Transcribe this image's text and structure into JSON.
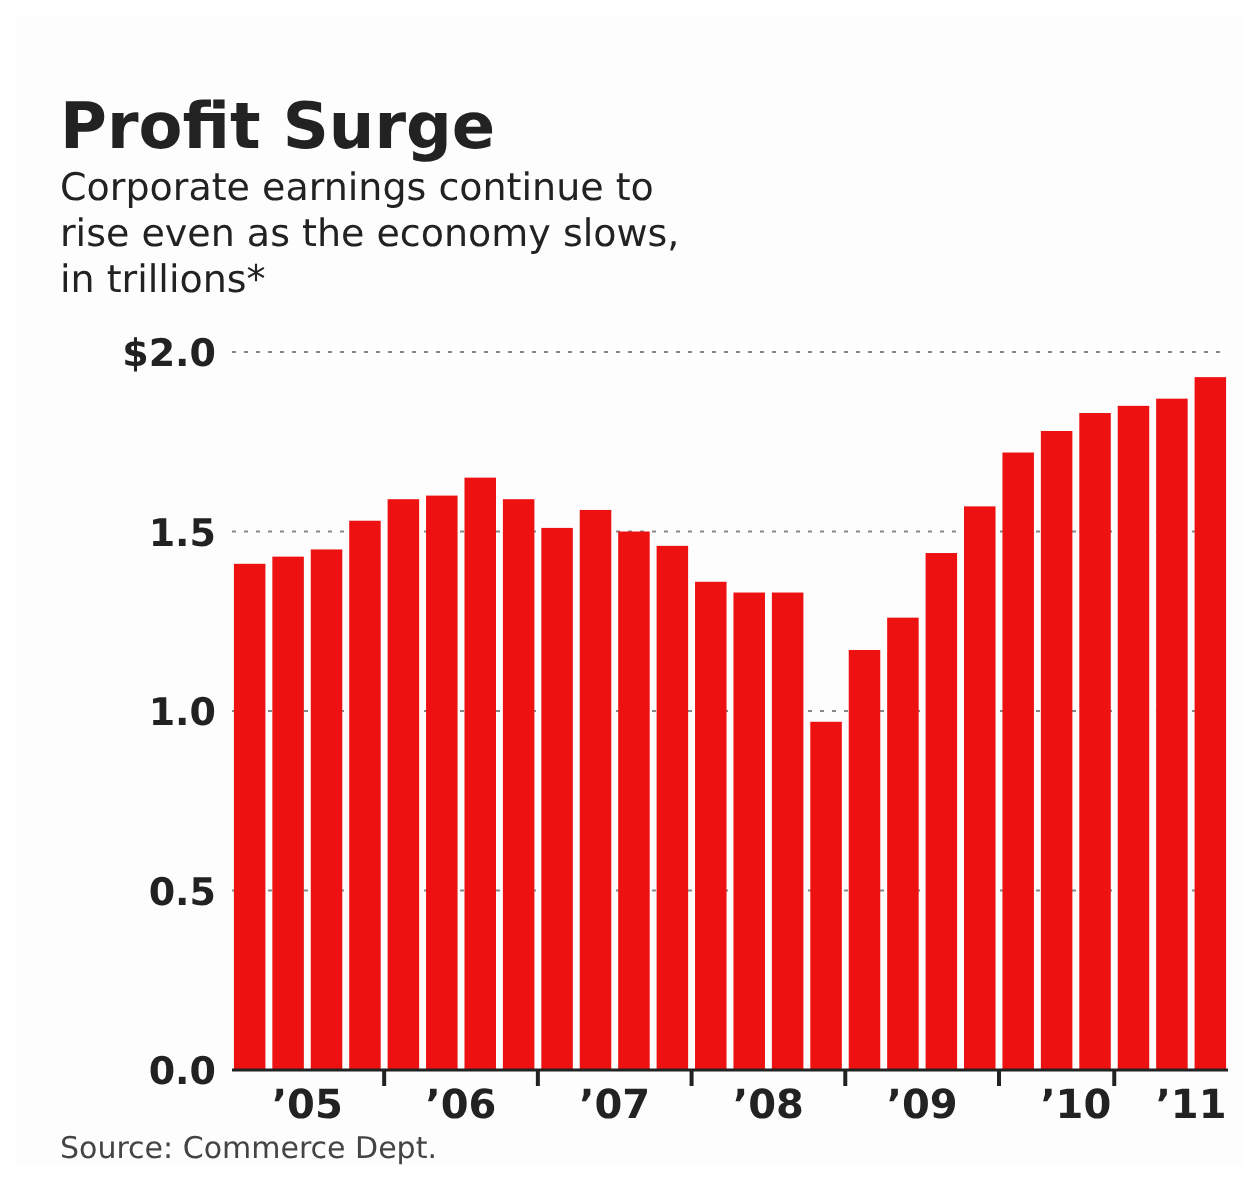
{
  "chart_data": {
    "type": "bar",
    "title": "Profit Surge",
    "subtitle": "Corporate earnings continue to rise even as the economy slows, in trillions*",
    "categories": [
      null,
      "’05",
      null,
      null,
      null,
      "’06",
      null,
      null,
      null,
      "’07",
      null,
      null,
      null,
      "’08",
      null,
      null,
      null,
      "’09",
      null,
      null,
      null,
      "’10",
      null,
      null,
      "’11",
      null
    ],
    "values": [
      1.41,
      1.43,
      1.45,
      1.53,
      1.59,
      1.6,
      1.65,
      1.59,
      1.51,
      1.56,
      1.5,
      1.46,
      1.36,
      1.33,
      1.33,
      0.97,
      1.17,
      1.26,
      1.44,
      1.57,
      1.72,
      1.78,
      1.83,
      1.85,
      1.87,
      1.93
    ],
    "color": "#ee1111",
    "ylim": [
      0,
      2
    ],
    "yticks": [
      {
        "value": 0,
        "label": "0.0"
      },
      {
        "value": 0.5,
        "label": "0.5"
      },
      {
        "value": 1,
        "label": "1.0"
      },
      {
        "value": 1.5,
        "label": "1.5"
      },
      {
        "value": 2,
        "label": "$2.0"
      }
    ],
    "grid": "y",
    "annotations": [
      "Source: Commerce Dept."
    ]
  }
}
